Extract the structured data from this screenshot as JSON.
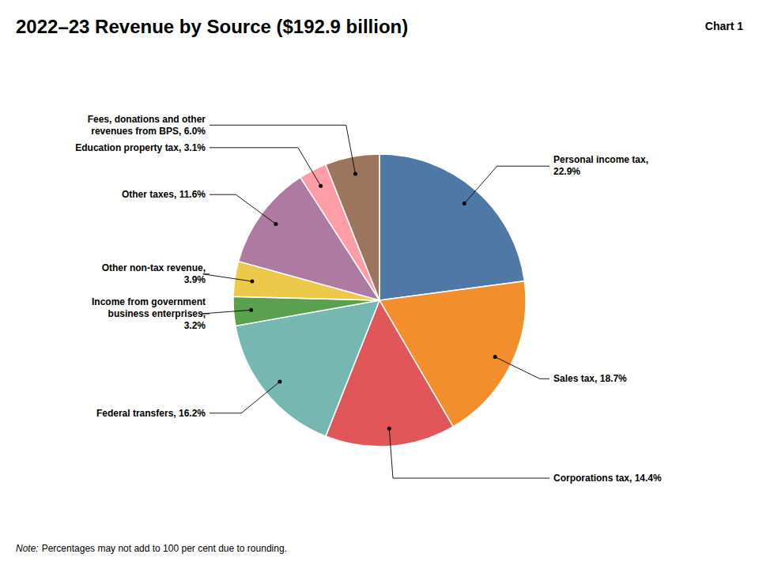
{
  "chart_data": {
    "type": "pie",
    "title": "2022–23 Revenue by Source ($192.9 billion)",
    "annotations": [
      "Chart 1",
      "Note:",
      "Percentages may not add to 100 per cent due to rounding."
    ],
    "categories": [
      "Personal income tax,\n22.9%",
      "Sales tax, 18.7%",
      "Corporations tax, 14.4%",
      "Federal transfers, 16.2%",
      "Income from government\nbusiness enterprises,\n3.2%",
      "Other non-tax revenue,\n3.9%",
      "Other taxes, 11.6%",
      "Education property tax, 3.1%",
      "Fees, donations and other\nrevenues from BPS, 6.0%"
    ],
    "values": [
      22.9,
      18.7,
      14.4,
      16.2,
      3.2,
      3.9,
      11.6,
      3.1,
      6.0
    ]
  }
}
